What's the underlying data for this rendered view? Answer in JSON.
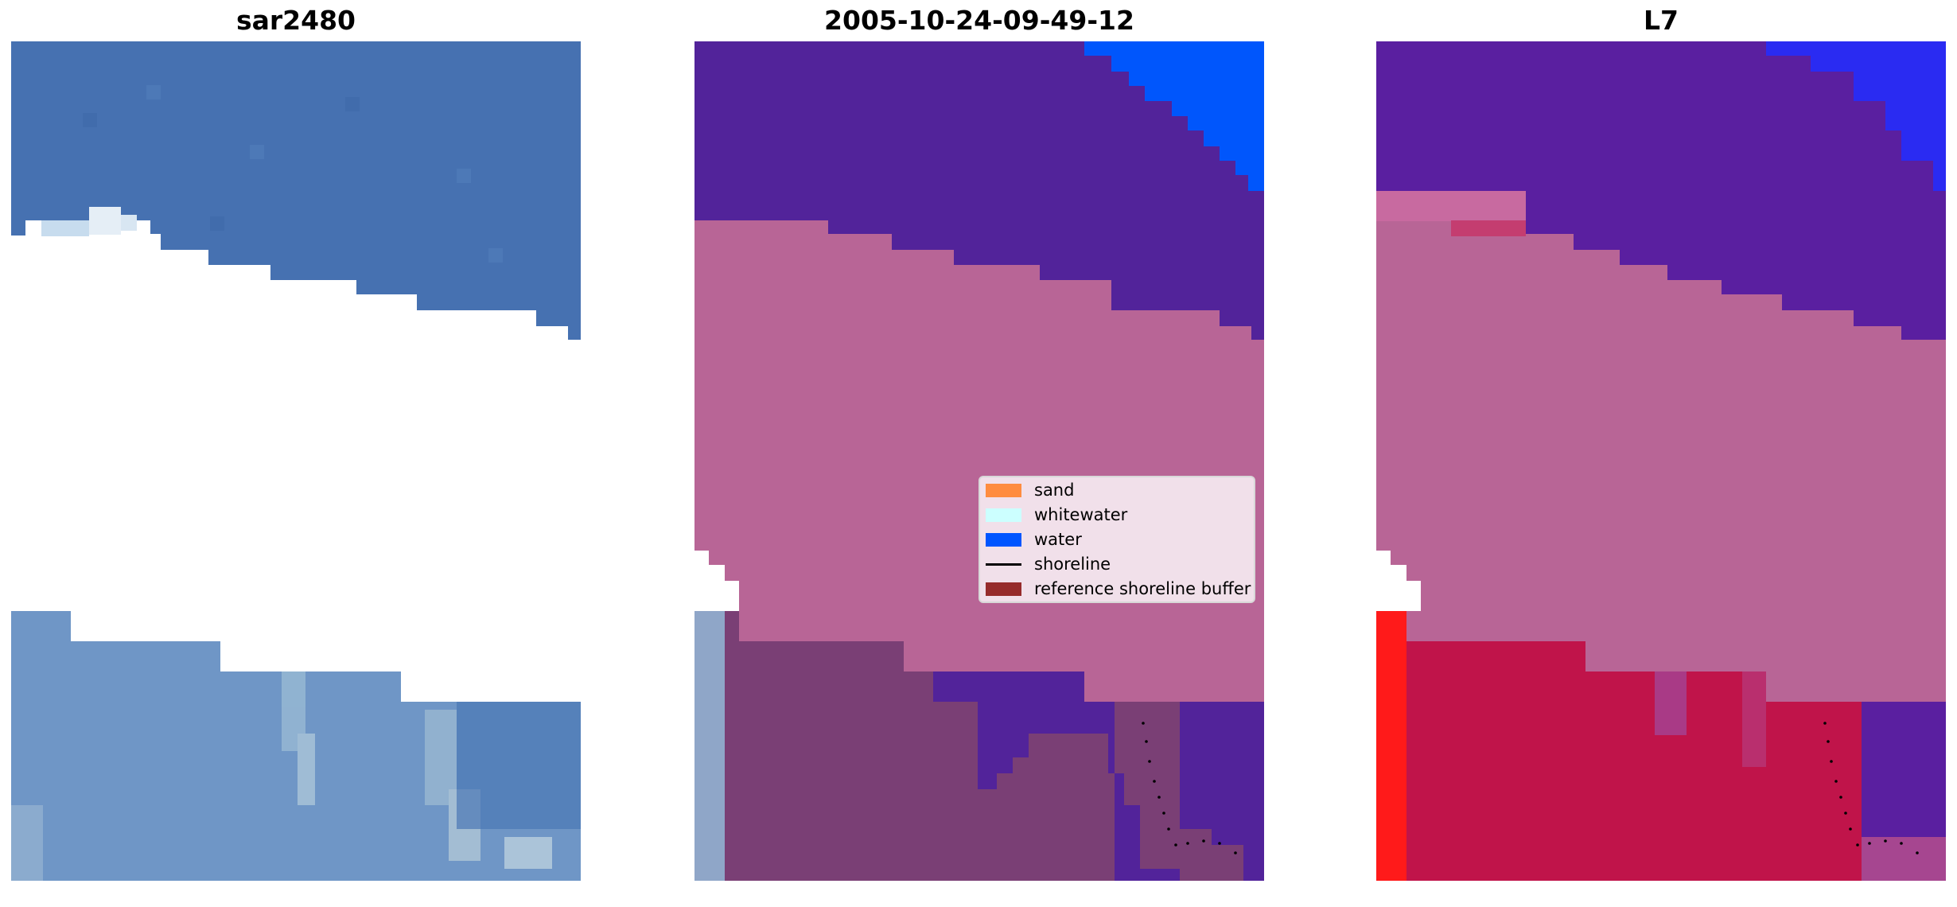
{
  "panels": [
    {
      "title": "sar2480"
    },
    {
      "title": "2005-10-24-09-49-12"
    },
    {
      "title": "L7"
    }
  ],
  "legend": {
    "items": [
      {
        "label": "sand",
        "color": "#ff8c3f",
        "kind": "patch"
      },
      {
        "label": "whitewater",
        "color": "#ccffff",
        "kind": "patch"
      },
      {
        "label": "water",
        "color": "#0055ff",
        "kind": "patch"
      },
      {
        "label": "shoreline",
        "color": "#000000",
        "kind": "line"
      },
      {
        "label": "reference shoreline buffer",
        "color": "#962b2b",
        "kind": "patch"
      }
    ]
  },
  "colors": {
    "image_blue": "#4570b0",
    "image_light": "#7fa3cf",
    "overlay_purple": "#52239a",
    "overlay_pink": "#b86596",
    "overlay_brown": "#7a3f75",
    "water_blue": "#0057ff",
    "l7_red": "#c0144a"
  }
}
